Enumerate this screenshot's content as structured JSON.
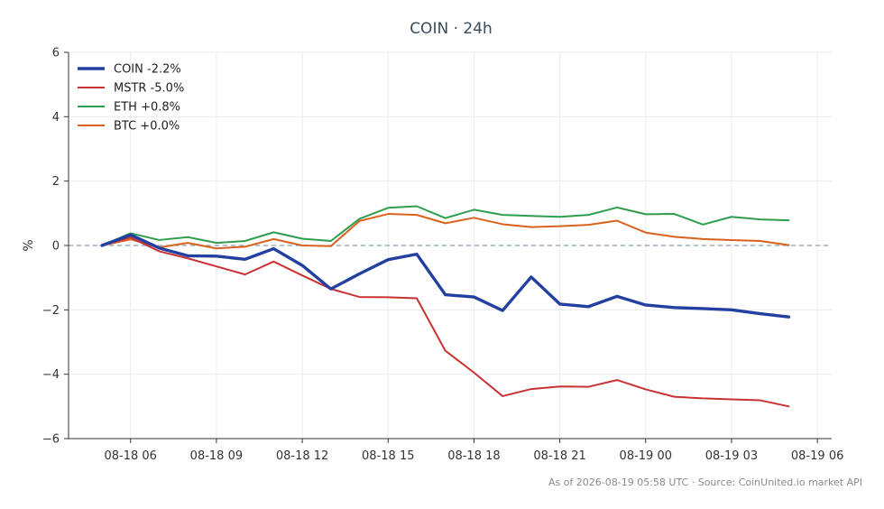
{
  "chart_data": {
    "type": "line",
    "title": "COIN · 24h",
    "ylabel": "%",
    "xlabel": "",
    "ylim": [
      -6,
      6
    ],
    "yticks": [
      -6,
      -4,
      -2,
      0,
      2,
      4,
      6
    ],
    "ytick_labels": [
      "−6",
      "−4",
      "−2",
      "0",
      "2",
      "4",
      "6"
    ],
    "xlim": [
      "2026-08-18 03:50",
      "2026-08-19 06:30"
    ],
    "xticks": [
      "2026-08-18 06:00",
      "2026-08-18 09:00",
      "2026-08-18 12:00",
      "2026-08-18 15:00",
      "2026-08-18 18:00",
      "2026-08-18 21:00",
      "2026-08-19 00:00",
      "2026-08-19 03:00",
      "2026-08-19 06:00"
    ],
    "xtick_labels": [
      "08-18 06",
      "08-18 09",
      "08-18 12",
      "08-18 15",
      "08-18 18",
      "08-18 21",
      "08-19 00",
      "08-19 03",
      "08-19 06"
    ],
    "x": [
      "2026-08-18 05:00",
      "2026-08-18 06:00",
      "2026-08-18 07:00",
      "2026-08-18 08:00",
      "2026-08-18 09:00",
      "2026-08-18 10:00",
      "2026-08-18 11:00",
      "2026-08-18 12:00",
      "2026-08-18 13:00",
      "2026-08-18 14:00",
      "2026-08-18 15:00",
      "2026-08-18 16:00",
      "2026-08-18 17:00",
      "2026-08-18 18:00",
      "2026-08-18 19:00",
      "2026-08-18 20:00",
      "2026-08-18 21:00",
      "2026-08-18 22:00",
      "2026-08-18 23:00",
      "2026-08-19 00:00",
      "2026-08-19 01:00",
      "2026-08-19 02:00",
      "2026-08-19 03:00",
      "2026-08-19 04:00",
      "2026-08-19 05:00"
    ],
    "zero_line": true,
    "grid": true,
    "legend": "top-left",
    "series": [
      {
        "name": "COIN -2.2%",
        "color": "#2340a0",
        "values": [
          0.0,
          0.33,
          -0.08,
          -0.32,
          -0.33,
          -0.43,
          -0.1,
          -0.62,
          -1.35,
          -0.88,
          -0.44,
          -0.27,
          -1.53,
          -1.6,
          -2.02,
          -0.98,
          -1.82,
          -1.9,
          -1.58,
          -1.85,
          -1.93,
          -1.96,
          -2.0,
          -2.12,
          -2.22
        ]
      },
      {
        "name": "MSTR -5.0%",
        "color": "#c83232",
        "values": [
          0.0,
          0.25,
          -0.18,
          -0.4,
          -0.65,
          -0.9,
          -0.5,
          -0.93,
          -1.35,
          -1.6,
          -1.61,
          -1.64,
          -3.27,
          -3.95,
          -4.68,
          -4.46,
          -4.38,
          -4.39,
          -4.18,
          -4.47,
          -4.7,
          -4.75,
          -4.78,
          -4.81,
          -5.0
        ]
      },
      {
        "name": "ETH +0.8%",
        "color": "#2e9e4e",
        "values": [
          0.0,
          0.38,
          0.17,
          0.26,
          0.08,
          0.14,
          0.41,
          0.21,
          0.14,
          0.83,
          1.17,
          1.22,
          0.85,
          1.11,
          0.95,
          0.92,
          0.89,
          0.95,
          1.18,
          0.97,
          0.98,
          0.65,
          0.89,
          0.81,
          0.78
        ]
      },
      {
        "name": "BTC +0.0%",
        "color": "#d9621e",
        "values": [
          0.0,
          0.19,
          -0.06,
          0.08,
          -0.09,
          -0.04,
          0.2,
          0.0,
          -0.02,
          0.76,
          0.98,
          0.95,
          0.69,
          0.86,
          0.66,
          0.57,
          0.6,
          0.64,
          0.77,
          0.4,
          0.27,
          0.2,
          0.17,
          0.14,
          0.01
        ]
      }
    ],
    "footer": "As of 2026-08-19 05:58 UTC · Source: CoinUnited.io market API"
  }
}
